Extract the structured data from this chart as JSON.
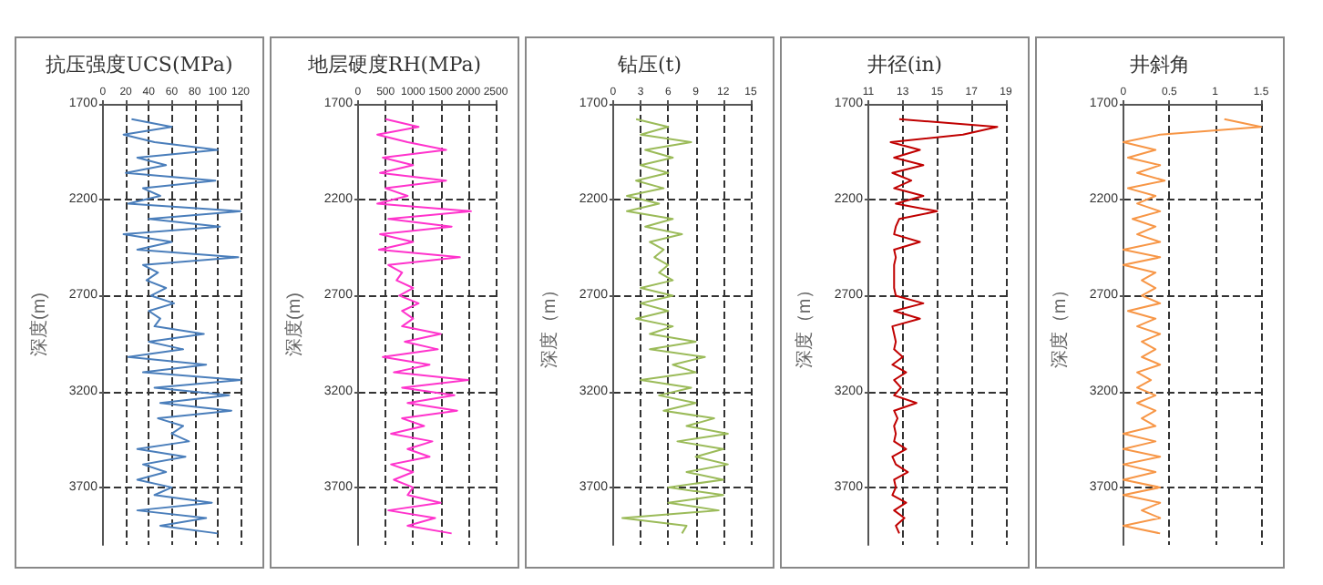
{
  "chart_data": [
    {
      "type": "line",
      "title": "抗压强度UCS(MPa)",
      "ylabel": "深度(m)",
      "color": "#4a7ebb",
      "xlim": [
        0,
        120
      ],
      "xticks": [
        0,
        20,
        40,
        60,
        80,
        100,
        120
      ],
      "ylim": [
        4000,
        1700
      ],
      "yticks": [
        1700,
        2200,
        2700,
        3200,
        3700
      ],
      "grid": true,
      "x": [
        25,
        60,
        18,
        45,
        100,
        30,
        55,
        20,
        98,
        35,
        50,
        22,
        120,
        40,
        102,
        18,
        60,
        30,
        118,
        35,
        48,
        38,
        55,
        42,
        62,
        40,
        50,
        45,
        88,
        40,
        70,
        22,
        90,
        35,
        120,
        45,
        110,
        50,
        112,
        48,
        70,
        60,
        75,
        30,
        72,
        35,
        55,
        30,
        60,
        45,
        95,
        30,
        90,
        50,
        100
      ],
      "values": [
        1780,
        1820,
        1860,
        1900,
        1940,
        1980,
        2020,
        2060,
        2100,
        2140,
        2180,
        2220,
        2260,
        2300,
        2340,
        2380,
        2420,
        2460,
        2500,
        2540,
        2580,
        2620,
        2660,
        2700,
        2740,
        2780,
        2820,
        2860,
        2900,
        2940,
        2980,
        3020,
        3060,
        3100,
        3140,
        3180,
        3220,
        3260,
        3300,
        3340,
        3380,
        3420,
        3460,
        3500,
        3540,
        3580,
        3620,
        3660,
        3700,
        3740,
        3780,
        3820,
        3860,
        3900,
        3940
      ]
    },
    {
      "type": "line",
      "title": "地层硬度RH(MPa)",
      "ylabel": "深度(m)",
      "color": "#ff33cc",
      "xlim": [
        0,
        2500
      ],
      "xticks": [
        0,
        500,
        1000,
        1500,
        2000,
        2500
      ],
      "ylim": [
        4000,
        1700
      ],
      "yticks": [
        1700,
        2200,
        2700,
        3200,
        3700
      ],
      "grid": true,
      "x": [
        500,
        1100,
        350,
        900,
        1600,
        450,
        1000,
        400,
        1600,
        500,
        900,
        350,
        2050,
        550,
        1700,
        400,
        1000,
        380,
        1850,
        550,
        800,
        700,
        1000,
        750,
        1100,
        800,
        1000,
        800,
        1500,
        850,
        1450,
        450,
        1300,
        650,
        2000,
        800,
        1750,
        900,
        1800,
        800,
        1200,
        600,
        1350,
        900,
        1300,
        600,
        1000,
        650,
        1000,
        900,
        1500,
        550,
        1400,
        900,
        1700
      ],
      "values": [
        1780,
        1820,
        1860,
        1900,
        1940,
        1980,
        2020,
        2060,
        2100,
        2140,
        2180,
        2220,
        2260,
        2300,
        2340,
        2380,
        2420,
        2460,
        2500,
        2540,
        2580,
        2620,
        2660,
        2700,
        2740,
        2780,
        2820,
        2860,
        2900,
        2940,
        2980,
        3020,
        3060,
        3100,
        3140,
        3180,
        3220,
        3260,
        3300,
        3340,
        3380,
        3420,
        3460,
        3500,
        3540,
        3580,
        3620,
        3660,
        3700,
        3740,
        3780,
        3820,
        3860,
        3900,
        3940
      ]
    },
    {
      "type": "line",
      "title": "钻压(t)",
      "ylabel": "深度（m）",
      "color": "#9bbb59",
      "xlim": [
        0,
        15
      ],
      "xticks": [
        0,
        3,
        6,
        9,
        12,
        15
      ],
      "ylim": [
        4000,
        1700
      ],
      "yticks": [
        1700,
        2200,
        2700,
        3200,
        3700
      ],
      "grid": true,
      "x": [
        2.5,
        6,
        3,
        8.5,
        3.5,
        6.5,
        3,
        6,
        2.5,
        5.5,
        1.5,
        5,
        1.5,
        6.5,
        3.5,
        7.5,
        4,
        5.5,
        4.5,
        6,
        5,
        6.5,
        3,
        6.5,
        3,
        6,
        2.5,
        6.5,
        4,
        9,
        4,
        10,
        6.5,
        9,
        3,
        8.5,
        5,
        9,
        5.5,
        11,
        8,
        12.5,
        7,
        12,
        9,
        12.5,
        8,
        12,
        6,
        12,
        6,
        11.5,
        1,
        8,
        7.5
      ],
      "values": [
        1780,
        1820,
        1860,
        1900,
        1940,
        1980,
        2020,
        2060,
        2100,
        2140,
        2180,
        2220,
        2260,
        2300,
        2340,
        2380,
        2420,
        2460,
        2500,
        2540,
        2580,
        2620,
        2660,
        2700,
        2740,
        2780,
        2820,
        2860,
        2900,
        2940,
        2980,
        3020,
        3060,
        3100,
        3140,
        3180,
        3220,
        3260,
        3300,
        3340,
        3380,
        3420,
        3460,
        3500,
        3540,
        3580,
        3620,
        3660,
        3700,
        3740,
        3780,
        3820,
        3860,
        3900,
        3940
      ]
    },
    {
      "type": "line",
      "title": "井径(in)",
      "ylabel": "深度（m）",
      "color": "#c00000",
      "xlim": [
        11,
        19
      ],
      "xticks": [
        11,
        13,
        15,
        17,
        19
      ],
      "ylim": [
        4000,
        1700
      ],
      "yticks": [
        1700,
        2200,
        2700,
        3200,
        3700
      ],
      "grid": true,
      "x": [
        12.8,
        18.5,
        16.5,
        12.3,
        14,
        12.5,
        14.2,
        12.4,
        13.5,
        12.5,
        14.2,
        12.6,
        15,
        12.8,
        12.6,
        12.5,
        14,
        12.5,
        12.6,
        12.5,
        12.5,
        12.5,
        12.5,
        12.6,
        14.2,
        12.5,
        14,
        12.4,
        12.5,
        12.6,
        12.5,
        13,
        12.4,
        13.2,
        12.5,
        12.9,
        12.5,
        13.8,
        12.5,
        12.7,
        12.5,
        12.6,
        12.5,
        13.2,
        12.4,
        12.6,
        13.3,
        12.5,
        12.6,
        12.4,
        13.2,
        12.5,
        13.1,
        12.6,
        12.8
      ],
      "values": [
        1780,
        1820,
        1860,
        1900,
        1940,
        1980,
        2020,
        2060,
        2100,
        2140,
        2180,
        2220,
        2260,
        2300,
        2340,
        2380,
        2420,
        2460,
        2500,
        2540,
        2580,
        2620,
        2660,
        2700,
        2740,
        2780,
        2820,
        2860,
        2900,
        2940,
        2980,
        3020,
        3060,
        3100,
        3140,
        3180,
        3220,
        3260,
        3300,
        3340,
        3380,
        3420,
        3460,
        3500,
        3540,
        3580,
        3620,
        3660,
        3700,
        3740,
        3780,
        3820,
        3860,
        3900,
        3940
      ]
    },
    {
      "type": "line",
      "title": "井斜角",
      "ylabel": "深度（m）",
      "color": "#f79646",
      "xlim": [
        0,
        1.5
      ],
      "xticks": [
        0,
        0.5,
        1,
        1.5
      ],
      "ylim": [
        4000,
        1700
      ],
      "yticks": [
        1700,
        2200,
        2700,
        3200,
        3700
      ],
      "grid": true,
      "x": [
        1.1,
        1.5,
        0.4,
        0,
        0.35,
        0.05,
        0.4,
        0.15,
        0.45,
        0.05,
        0.35,
        0.15,
        0.4,
        0.1,
        0.35,
        0.15,
        0.4,
        0,
        0.4,
        0,
        0.35,
        0.2,
        0.35,
        0.2,
        0.4,
        0.05,
        0.35,
        0.15,
        0.4,
        0.2,
        0.35,
        0.2,
        0.4,
        0.15,
        0.3,
        0.15,
        0.35,
        0.15,
        0.35,
        0.2,
        0.35,
        0,
        0.35,
        0,
        0.4,
        0,
        0.35,
        0,
        0.4,
        0,
        0.4,
        0.2,
        0.4,
        0,
        0.4
      ],
      "values": [
        1780,
        1820,
        1860,
        1900,
        1940,
        1980,
        2020,
        2060,
        2100,
        2140,
        2180,
        2220,
        2260,
        2300,
        2340,
        2380,
        2420,
        2460,
        2500,
        2540,
        2580,
        2620,
        2660,
        2700,
        2740,
        2780,
        2820,
        2860,
        2900,
        2940,
        2980,
        3020,
        3060,
        3100,
        3140,
        3180,
        3220,
        3260,
        3300,
        3340,
        3380,
        3420,
        3460,
        3500,
        3540,
        3580,
        3620,
        3660,
        3700,
        3740,
        3780,
        3820,
        3860,
        3900,
        3940
      ]
    }
  ]
}
